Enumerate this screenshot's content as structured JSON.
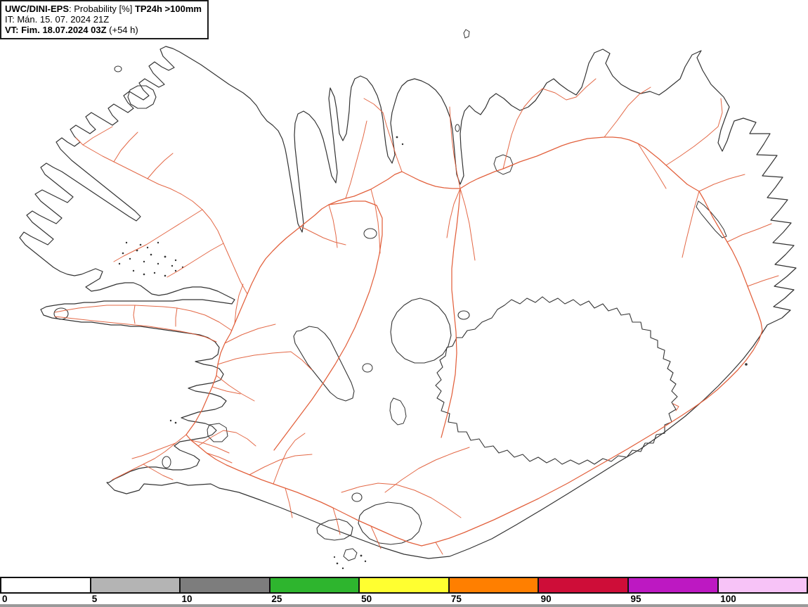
{
  "header": {
    "title_model": "UWC/DINI-EPS",
    "title_sep": ": ",
    "title_field": "Probability [%] ",
    "title_threshold": "TP24h >100mm",
    "init_line": "IT: Mán. 15. 07. 2024 21Z",
    "valid_line_bold": "VT: Fim. 18.07.2024 03Z",
    "valid_line_suffix": " (+54 h)"
  },
  "colorbar": {
    "tick_labels": [
      "0",
      "5",
      "10",
      "25",
      "50",
      "75",
      "90",
      "95",
      "100"
    ],
    "segment_colors": [
      "#ffffff",
      "#b4b4b4",
      "#7d7d7d",
      "#2eb52e",
      "#ffff30",
      "#ff7f00",
      "#ce0d38",
      "#bd18c2",
      "#f7c3f7"
    ],
    "border_color": "#111111",
    "footer_strip_color": "#9a9a9a"
  },
  "map": {
    "background": "#ffffff",
    "coastline_color": "#333333",
    "road_color": "#e2603c"
  }
}
